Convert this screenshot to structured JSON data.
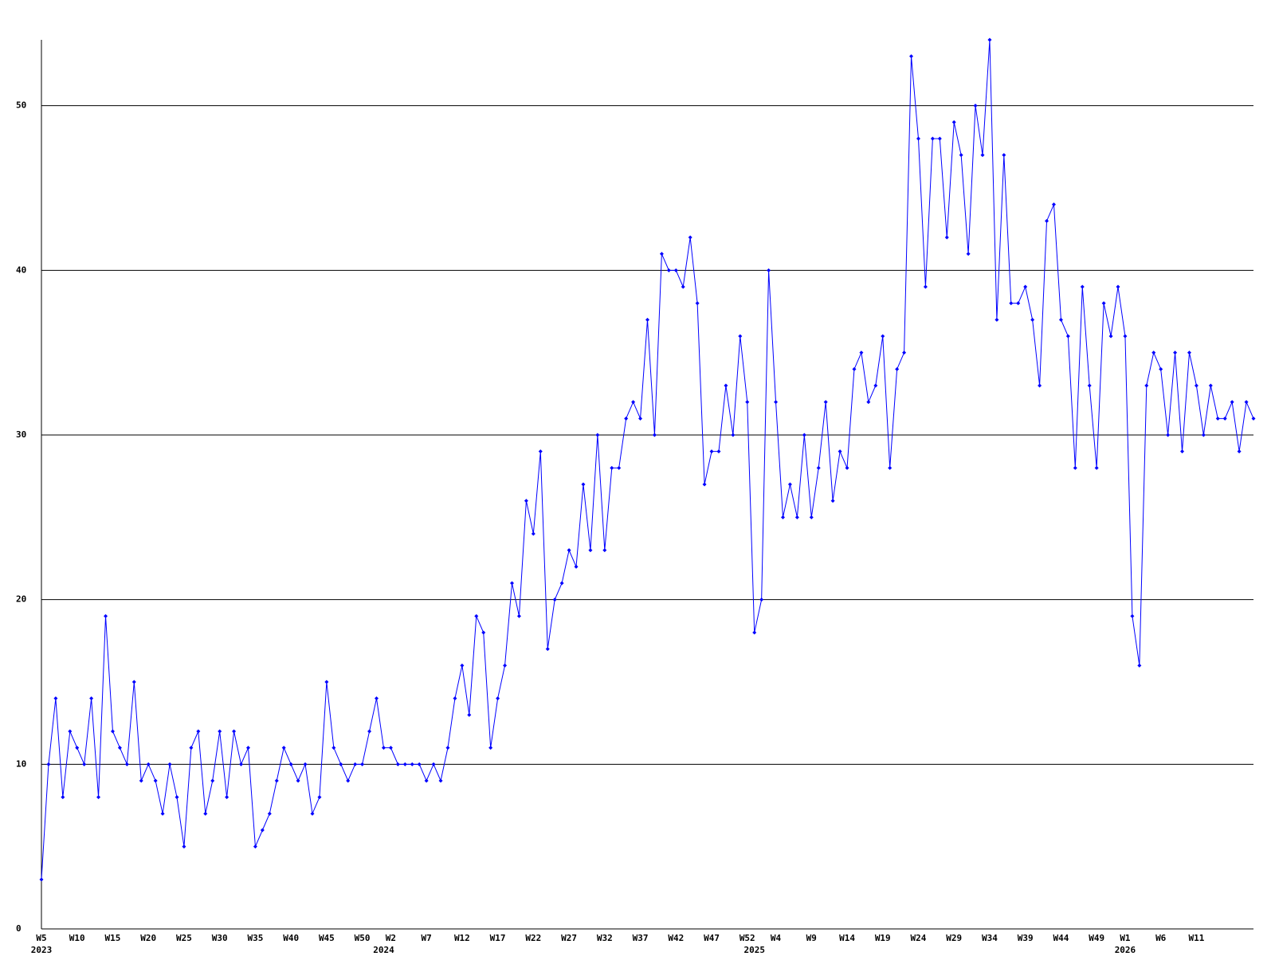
{
  "chart_data": {
    "type": "line",
    "categories": [
      "W5",
      null,
      null,
      null,
      null,
      "W10",
      null,
      null,
      null,
      null,
      "W15",
      null,
      null,
      null,
      null,
      "W20",
      null,
      null,
      null,
      null,
      "W25",
      null,
      null,
      null,
      null,
      "W30",
      null,
      null,
      null,
      null,
      "W35",
      null,
      null,
      null,
      null,
      "W40",
      null,
      null,
      null,
      null,
      "W45",
      null,
      null,
      null,
      null,
      "W50",
      null,
      null,
      null,
      "W2",
      null,
      null,
      null,
      null,
      "W7",
      null,
      null,
      null,
      null,
      "W12",
      null,
      null,
      null,
      null,
      "W17",
      null,
      null,
      null,
      null,
      "W22",
      null,
      null,
      null,
      null,
      "W27",
      null,
      null,
      null,
      null,
      "W32",
      null,
      null,
      null,
      null,
      "W37",
      null,
      null,
      null,
      null,
      "W42",
      null,
      null,
      null,
      null,
      "W47",
      null,
      null,
      null,
      null,
      "W52",
      null,
      null,
      null,
      "W4",
      null,
      null,
      null,
      null,
      "W9",
      null,
      null,
      null,
      null,
      "W14",
      null,
      null,
      null,
      null,
      "W19",
      null,
      null,
      null,
      null,
      "W24",
      null,
      null,
      null,
      null,
      "W29",
      null,
      null,
      null,
      null,
      "W34",
      null,
      null,
      null,
      null,
      "W39",
      null,
      null,
      null,
      null,
      "W44",
      null,
      null,
      null,
      null,
      "W49",
      null,
      null,
      null,
      "W1",
      null,
      null,
      null,
      null,
      "W6",
      null,
      null,
      null,
      null,
      "W11",
      null,
      null,
      null,
      null,
      null,
      null,
      null,
      null
    ],
    "category_years": [
      "2023",
      null,
      null,
      null,
      null,
      null,
      null,
      null,
      null,
      null,
      null,
      null,
      null,
      null,
      null,
      null,
      null,
      null,
      null,
      null,
      null,
      null,
      null,
      null,
      null,
      null,
      null,
      null,
      null,
      null,
      null,
      null,
      null,
      null,
      null,
      null,
      null,
      null,
      null,
      null,
      null,
      null,
      null,
      null,
      null,
      null,
      null,
      null,
      "2024",
      null,
      null,
      null,
      null,
      null,
      null,
      null,
      null,
      null,
      null,
      null,
      null,
      null,
      null,
      null,
      null,
      null,
      null,
      null,
      null,
      null,
      null,
      null,
      null,
      null,
      null,
      null,
      null,
      null,
      null,
      null,
      null,
      null,
      null,
      null,
      null,
      null,
      null,
      null,
      null,
      null,
      null,
      null,
      null,
      null,
      null,
      null,
      null,
      null,
      null,
      null,
      "2025",
      null,
      null,
      null,
      null,
      null,
      null,
      null,
      null,
      null,
      null,
      null,
      null,
      null,
      null,
      null,
      null,
      null,
      null,
      null,
      null,
      null,
      null,
      null,
      null,
      null,
      null,
      null,
      null,
      null,
      null,
      null,
      null,
      null,
      null,
      null,
      null,
      null,
      null,
      null,
      null,
      null,
      null,
      null,
      null,
      null,
      null,
      null,
      null,
      null,
      null,
      null,
      "2026",
      null,
      null,
      null,
      null,
      null,
      null,
      null,
      null,
      null,
      null,
      null,
      null,
      null,
      null,
      null,
      null,
      null,
      null
    ],
    "values": [
      3,
      10,
      14,
      8,
      12,
      11,
      10,
      14,
      8,
      19,
      12,
      11,
      10,
      15,
      9,
      10,
      9,
      7,
      10,
      8,
      5,
      11,
      12,
      7,
      9,
      12,
      8,
      12,
      10,
      11,
      5,
      6,
      7,
      9,
      11,
      10,
      9,
      10,
      7,
      8,
      15,
      11,
      10,
      9,
      10,
      10,
      12,
      14,
      11,
      11,
      10,
      10,
      10,
      10,
      9,
      10,
      9,
      11,
      14,
      16,
      13,
      19,
      18,
      11,
      14,
      16,
      21,
      19,
      26,
      24,
      29,
      17,
      20,
      21,
      23,
      22,
      27,
      23,
      30,
      23,
      28,
      28,
      31,
      32,
      31,
      37,
      30,
      41,
      40,
      40,
      39,
      42,
      38,
      27,
      29,
      29,
      33,
      30,
      36,
      32,
      18,
      20,
      40,
      32,
      25,
      27,
      25,
      30,
      25,
      28,
      32,
      26,
      29,
      28,
      34,
      35,
      32,
      33,
      36,
      28,
      34,
      35,
      53,
      48,
      39,
      48,
      48,
      42,
      49,
      47,
      41,
      50,
      47,
      54,
      37,
      47,
      38,
      38,
      39,
      37,
      33,
      43,
      44,
      37,
      36,
      28,
      39,
      33,
      28,
      38,
      36,
      39,
      36,
      19,
      16,
      33,
      35,
      34,
      30,
      35,
      29,
      35,
      33,
      30,
      33,
      31,
      31,
      32,
      29,
      32,
      31
    ],
    "color": "#0000ff",
    "ylim": [
      0,
      54
    ],
    "yticks": [
      0,
      10,
      20,
      30,
      40,
      50
    ],
    "grid": true
  }
}
